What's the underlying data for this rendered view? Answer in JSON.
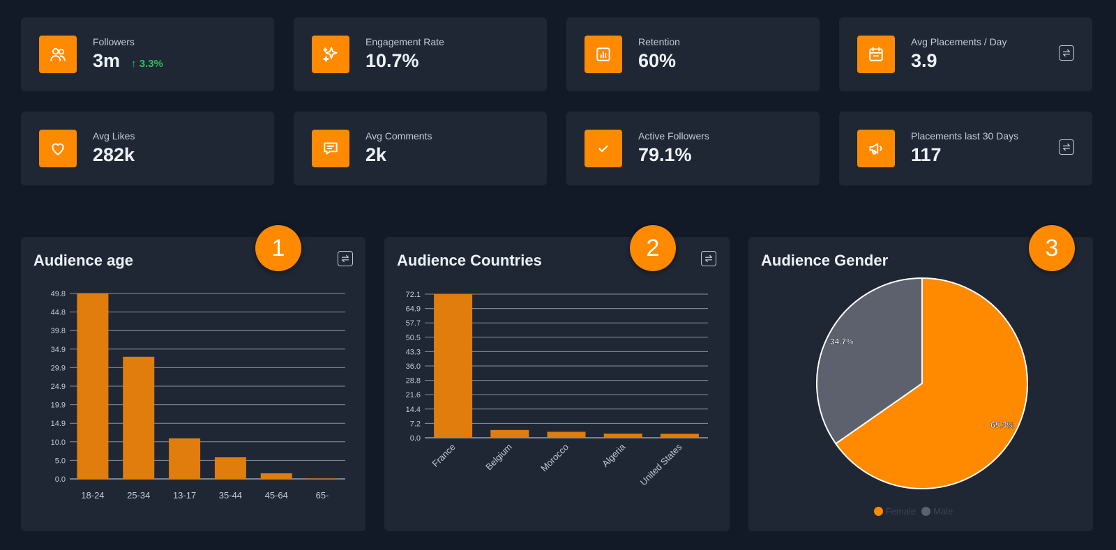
{
  "stats": [
    {
      "label": "Followers",
      "value": "3m",
      "change": "↑ 3.3%",
      "icon": "users-icon"
    },
    {
      "label": "Engagement Rate",
      "value": "10.7%",
      "icon": "sparkles-icon"
    },
    {
      "label": "Retention",
      "value": "60%",
      "icon": "bar-chart-icon"
    },
    {
      "label": "Avg Placements / Day",
      "value": "3.9",
      "icon": "calendar-icon"
    },
    {
      "label": "Avg Likes",
      "value": "282k",
      "icon": "heart-icon"
    },
    {
      "label": "Avg Comments",
      "value": "2k",
      "icon": "message-icon"
    },
    {
      "label": "Active Followers",
      "value": "79.1%",
      "icon": "check-icon"
    },
    {
      "label": "Placements last 30 Days",
      "value": "117",
      "icon": "megaphone-icon"
    }
  ],
  "panels": {
    "age": {
      "title": "Audience age",
      "badge": "1"
    },
    "countries": {
      "title": "Audience Countries",
      "badge": "2"
    },
    "gender": {
      "title": "Audience Gender",
      "badge": "3"
    }
  },
  "colors": {
    "accent": "#ff8a00",
    "bar": "#e07d0d",
    "male": "#5d616e",
    "positive": "#22c55e"
  },
  "chart_data": [
    {
      "type": "bar",
      "title": "Audience age",
      "categories": [
        "18-24",
        "25-34",
        "13-17",
        "35-44",
        "45-64",
        "65-"
      ],
      "values": [
        49.8,
        32.8,
        10.9,
        5.8,
        1.5,
        0.1
      ],
      "yticks": [
        "0.0",
        "5.0",
        "10.0",
        "14.9",
        "19.9",
        "24.9",
        "29.9",
        "34.9",
        "39.8",
        "44.8",
        "49.8"
      ],
      "ylim": [
        0,
        49.8
      ],
      "grid": true
    },
    {
      "type": "bar",
      "title": "Audience Countries",
      "categories": [
        "France",
        "Belgium",
        "Morocco",
        "Algeria",
        "United States"
      ],
      "values": [
        72.1,
        3.9,
        3.0,
        2.1,
        2.0
      ],
      "yticks": [
        "0.0",
        "7.2",
        "14.4",
        "21.6",
        "28.8",
        "36.0",
        "43.3",
        "50.5",
        "57.7",
        "64.9",
        "72.1"
      ],
      "ylim": [
        0,
        72.1
      ],
      "grid": true
    },
    {
      "type": "pie",
      "title": "Audience Gender",
      "labels": [
        "Female",
        "Male"
      ],
      "values": [
        65.3,
        34.7
      ],
      "value_labels": [
        "65.3%",
        "34.7%"
      ],
      "legend": "bottom"
    }
  ]
}
